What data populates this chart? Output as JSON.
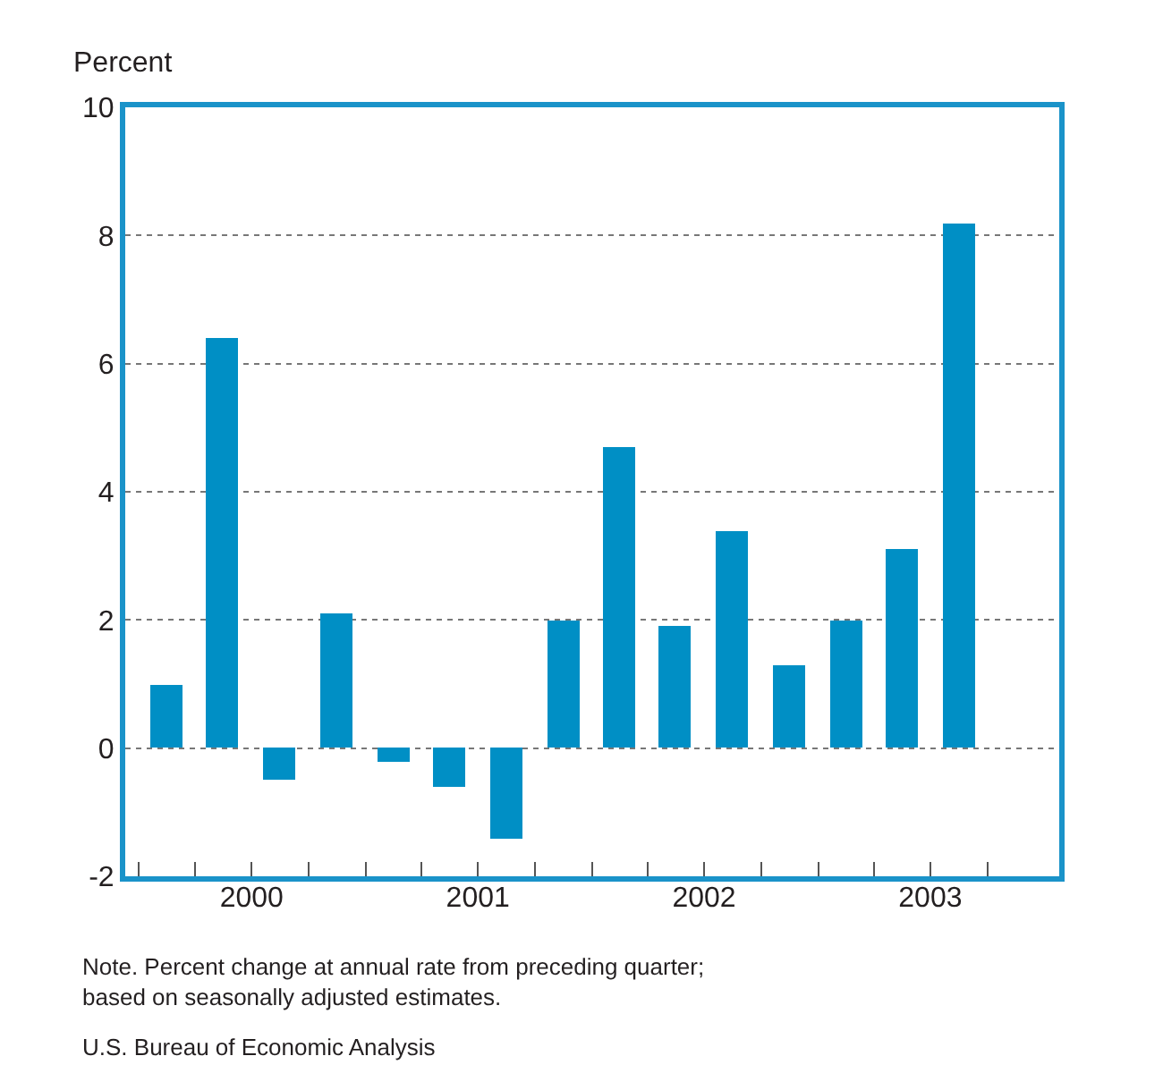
{
  "chart_data": {
    "type": "bar",
    "ylabel": "Percent",
    "x": [
      "2000-02-15",
      "2000-05-15",
      "2000-08-15",
      "2000-11-15",
      "2001-02-15",
      "2001-05-15",
      "2001-08-15",
      "2001-11-15",
      "2002-02-15",
      "2002-05-15",
      "2002-08-15",
      "2002-11-15",
      "2003-02-15",
      "2003-05-15",
      "2003-08-15"
    ],
    "values": [
      1.0,
      6.4,
      -0.5,
      2.1,
      -0.2,
      -0.6,
      -1.4,
      2.0,
      4.7,
      1.9,
      3.4,
      1.3,
      2.0,
      3.1,
      8.2
    ],
    "color": "#008fc5",
    "xlim": [
      "1999-12-10",
      "2004-01-25"
    ],
    "xticks": [
      {
        "value": "2000-01-01",
        "label": null
      },
      {
        "value": "2000-04-01",
        "label": null
      },
      {
        "value": "2000-07-01",
        "label": null
      },
      {
        "value": "2000-10-01",
        "label": null
      },
      {
        "value": "2001-01-01",
        "label": null
      },
      {
        "value": "2001-04-01",
        "label": null
      },
      {
        "value": "2001-07-01",
        "label": null
      },
      {
        "value": "2001-10-01",
        "label": null
      },
      {
        "value": "2002-01-01",
        "label": null
      },
      {
        "value": "2002-04-01",
        "label": null
      },
      {
        "value": "2002-07-01",
        "label": null
      },
      {
        "value": "2002-10-01",
        "label": null
      },
      {
        "value": "2003-01-01",
        "label": null
      },
      {
        "value": "2003-04-01",
        "label": null
      },
      {
        "value": "2003-07-01",
        "label": null
      },
      {
        "value": "2003-10-01",
        "label": null
      },
      {
        "value": "2000-07-01",
        "label": "2000"
      },
      {
        "value": "2001-07-01",
        "label": "2001"
      },
      {
        "value": "2002-07-01",
        "label": "2002"
      },
      {
        "value": "2003-07-01",
        "label": "2003"
      }
    ],
    "ylim": [
      -2,
      10
    ],
    "yticks": [
      -2,
      0,
      2,
      4,
      6,
      8,
      10
    ],
    "grid": "y",
    "annotations": [
      "Note. Percent change at annual rate from preceding quarter;\nbased on seasonally adjusted estimates.",
      "U.S. Bureau of Economic Analysis"
    ]
  }
}
